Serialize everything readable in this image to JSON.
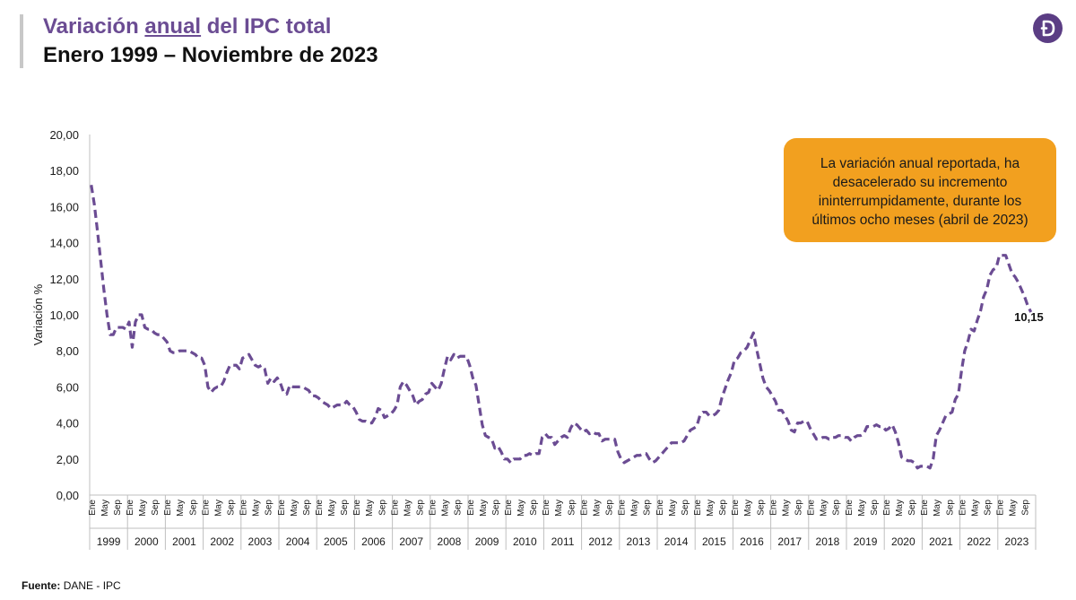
{
  "header": {
    "title_part1": "Variación",
    "title_part2": "anual",
    "title_part3": "del IPC total",
    "subtitle": "Enero 1999 – Noviembre de 2023",
    "logo_letter": "D"
  },
  "callout": {
    "text": "La variación anual reportada, ha desacelerado su incremento ininterrumpidamente, durante los últimos ocho meses (abril de 2023)"
  },
  "footer": {
    "source_label": "Fuente:",
    "source_value": "DANE - IPC"
  },
  "colors": {
    "series": "#6b4c93",
    "callout": "#f2a01f",
    "title": "#6b4c93",
    "axis": "#bfbfbf",
    "text": "#1a1a1a"
  },
  "chart_data": {
    "type": "line",
    "title": "Variación anual del IPC total",
    "subtitle": "Enero 1999 – Noviembre de 2023",
    "xlabel": "",
    "ylabel": "Variación %",
    "ylim": [
      0,
      20
    ],
    "yticks": [
      "0,00",
      "2,00",
      "4,00",
      "6,00",
      "8,00",
      "10,00",
      "12,00",
      "14,00",
      "16,00",
      "18,00",
      "20,00"
    ],
    "month_labels": [
      "Ene",
      "May",
      "Sep"
    ],
    "years": [
      "1999",
      "2000",
      "2001",
      "2002",
      "2003",
      "2004",
      "2005",
      "2006",
      "2007",
      "2008",
      "2009",
      "2010",
      "2011",
      "2012",
      "2013",
      "2014",
      "2015",
      "2016",
      "2017",
      "2018",
      "2019",
      "2020",
      "2021",
      "2022",
      "2023"
    ],
    "grid": false,
    "legend": "none",
    "line_style": "dashed",
    "last_label": "10,15",
    "series": [
      {
        "values": [
          17.2,
          16.1,
          14.6,
          13.0,
          11.4,
          10.0,
          8.9,
          8.9,
          9.3,
          9.3,
          9.3,
          9.2,
          9.6,
          8.2,
          9.6,
          10.0,
          10.0,
          9.3,
          9.2,
          9.2,
          9.0,
          8.9,
          8.9,
          8.7,
          8.5,
          8.0,
          7.9,
          7.9,
          8.0,
          8.0,
          8.0,
          8.0,
          7.9,
          7.8,
          7.6,
          7.6,
          7.2,
          6.0,
          5.7,
          5.9,
          6.0,
          6.0,
          6.3,
          6.8,
          7.2,
          7.2,
          7.2,
          7.0,
          7.6,
          7.7,
          7.8,
          7.5,
          7.2,
          7.1,
          7.2,
          7.0,
          6.2,
          6.5,
          6.3,
          6.5,
          6.2,
          5.7,
          5.6,
          6.1,
          6.0,
          6.0,
          6.0,
          6.0,
          5.9,
          5.8,
          5.5,
          5.5,
          5.4,
          5.2,
          5.1,
          5.0,
          4.8,
          4.9,
          5.0,
          5.0,
          5.0,
          5.2,
          5.0,
          4.9,
          4.6,
          4.2,
          4.1,
          4.1,
          4.0,
          4.0,
          4.3,
          4.8,
          4.7,
          4.3,
          4.4,
          4.5,
          4.7,
          5.0,
          6.0,
          6.3,
          6.1,
          5.8,
          5.5,
          5.0,
          5.2,
          5.3,
          5.6,
          5.7,
          6.2,
          6.0,
          5.8,
          6.2,
          7.0,
          7.7,
          7.5,
          7.8,
          7.6,
          7.7,
          7.7,
          7.7,
          7.2,
          6.5,
          6.1,
          5.0,
          3.9,
          3.3,
          3.2,
          3.1,
          2.6,
          2.7,
          2.4,
          2.0,
          2.0,
          1.8,
          2.0,
          2.0,
          2.0,
          2.2,
          2.2,
          2.3,
          2.2,
          2.3,
          2.3,
          3.2,
          3.4,
          3.2,
          3.2,
          2.8,
          3.0,
          3.2,
          3.3,
          3.2,
          3.7,
          4.0,
          3.9,
          3.7,
          3.5,
          3.6,
          3.4,
          3.5,
          3.4,
          3.4,
          3.0,
          3.1,
          3.1,
          3.1,
          3.1,
          2.4,
          2.0,
          1.8,
          1.9,
          2.0,
          2.1,
          2.2,
          2.2,
          2.3,
          2.3,
          2.0,
          1.8,
          1.9,
          2.1,
          2.3,
          2.5,
          2.7,
          2.9,
          2.9,
          2.9,
          2.9,
          3.0,
          3.3,
          3.6,
          3.7,
          3.8,
          4.4,
          4.6,
          4.6,
          4.4,
          4.4,
          4.5,
          4.7,
          5.4,
          5.9,
          6.4,
          6.8,
          7.5,
          7.6,
          7.9,
          8.0,
          8.2,
          8.6,
          9.0,
          8.1,
          7.3,
          6.5,
          6.0,
          5.8,
          5.5,
          5.2,
          4.7,
          4.7,
          4.4,
          4.1,
          3.6,
          3.5,
          4.0,
          4.0,
          4.1,
          4.1,
          3.7,
          3.4,
          3.1,
          3.1,
          3.2,
          3.2,
          3.1,
          3.2,
          3.2,
          3.3,
          3.3,
          3.2,
          3.2,
          3.0,
          3.2,
          3.3,
          3.3,
          3.4,
          3.8,
          3.8,
          3.8,
          3.9,
          3.8,
          3.8,
          3.6,
          3.7,
          3.9,
          3.5,
          2.9,
          2.1,
          2.0,
          1.9,
          1.9,
          1.8,
          1.5,
          1.6,
          1.6,
          1.6,
          1.5,
          2.0,
          3.3,
          3.6,
          4.0,
          4.4,
          4.5,
          4.6,
          5.3,
          5.6,
          6.9,
          8.0,
          8.5,
          9.2,
          9.1,
          9.7,
          10.2,
          11.0,
          11.4,
          12.2,
          12.5,
          12.6,
          13.3,
          13.3,
          13.3,
          12.8,
          12.3,
          12.1,
          11.8,
          11.4,
          11.0,
          10.5,
          10.15
        ]
      }
    ]
  }
}
